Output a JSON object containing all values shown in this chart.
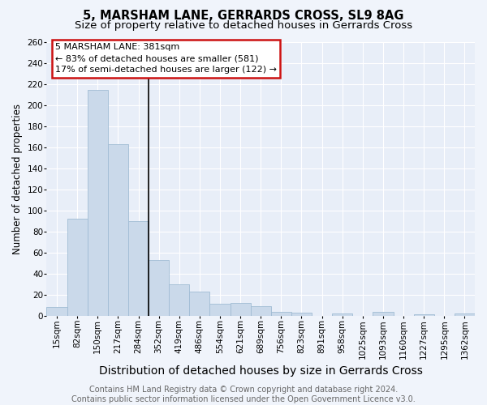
{
  "title": "5, MARSHAM LANE, GERRARDS CROSS, SL9 8AG",
  "subtitle": "Size of property relative to detached houses in Gerrards Cross",
  "xlabel": "Distribution of detached houses by size in Gerrards Cross",
  "ylabel": "Number of detached properties",
  "categories": [
    "15sqm",
    "82sqm",
    "150sqm",
    "217sqm",
    "284sqm",
    "352sqm",
    "419sqm",
    "486sqm",
    "554sqm",
    "621sqm",
    "689sqm",
    "756sqm",
    "823sqm",
    "891sqm",
    "958sqm",
    "1025sqm",
    "1093sqm",
    "1160sqm",
    "1227sqm",
    "1295sqm",
    "1362sqm"
  ],
  "values": [
    8,
    92,
    214,
    163,
    90,
    53,
    30,
    23,
    11,
    12,
    9,
    4,
    3,
    0,
    2,
    0,
    4,
    0,
    1,
    0,
    2
  ],
  "bar_color": "#cad9ea",
  "bar_edge_color": "#a0bcd4",
  "annotation_title": "5 MARSHAM LANE: 381sqm",
  "annotation_line1": "← 83% of detached houses are smaller (581)",
  "annotation_line2": "17% of semi-detached houses are larger (122) →",
  "annotation_box_facecolor": "#ffffff",
  "annotation_box_edgecolor": "#cc1111",
  "highlight_vline_x": 4.5,
  "ylim": [
    0,
    260
  ],
  "yticks": [
    0,
    20,
    40,
    60,
    80,
    100,
    120,
    140,
    160,
    180,
    200,
    220,
    240,
    260
  ],
  "footer_line1": "Contains HM Land Registry data © Crown copyright and database right 2024.",
  "footer_line2": "Contains public sector information licensed under the Open Government Licence v3.0.",
  "fig_facecolor": "#f0f4fb",
  "ax_facecolor": "#e8eef8",
  "grid_color": "#ffffff",
  "title_fontsize": 10.5,
  "subtitle_fontsize": 9.5,
  "xlabel_fontsize": 10,
  "ylabel_fontsize": 8.5,
  "tick_fontsize": 7.5,
  "annot_fontsize": 8,
  "footer_fontsize": 7
}
